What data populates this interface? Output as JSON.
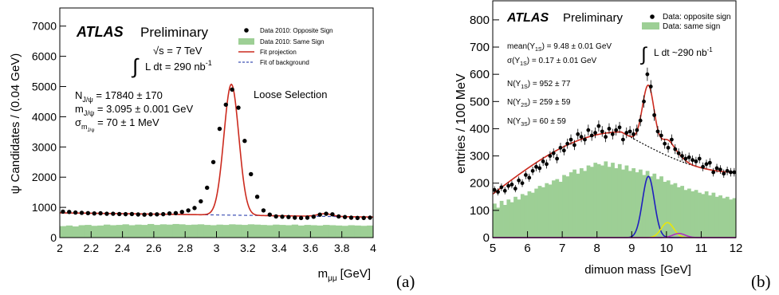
{
  "colors": {
    "data": "#000000",
    "same_sign_fill": "#9dcf95",
    "fit": "#cc2a1e",
    "background_fit_a": "#3f51b5",
    "background_fit_b": "#000000",
    "y1s": "#1f1fbf",
    "y2s": "#e8e80a",
    "y3s": "#b030c0",
    "baseline_b": "#b030c0"
  },
  "chart_data": [
    {
      "type": "line",
      "panel_label": "(a)",
      "xlabel": "m",
      "xlabel_sub": "μμ",
      "xlabel_unit": "[GeV]",
      "ylabel": "ψ Candidates / (0.04 GeV)",
      "xlim": [
        2,
        4
      ],
      "ylim": [
        0,
        7600
      ],
      "xticks": [
        2,
        2.2,
        2.4,
        2.6,
        2.8,
        3,
        3.2,
        3.4,
        3.6,
        3.8,
        4
      ],
      "xtick_labels": [
        "2",
        "2.2",
        "2.4",
        "2.6",
        "2.8",
        "3",
        "3.2",
        "3.4",
        "3.6",
        "3.8",
        "4"
      ],
      "yticks": [
        0,
        1000,
        2000,
        3000,
        4000,
        5000,
        6000,
        7000
      ],
      "ytick_labels": [
        "0",
        "1000",
        "2000",
        "3000",
        "4000",
        "5000",
        "6000",
        "7000"
      ],
      "annotations": {
        "atlas": "ATLAS",
        "preliminary": "Preliminary",
        "energy": "√s = 7 TeV",
        "lumi_integral": "∫",
        "lumi": "L dt = 290 nb",
        "lumi_sup": "-1",
        "n_label": "N",
        "n_sub": "J/ψ",
        "n_value": " = 17840 ± 170",
        "m_label": "m",
        "m_sub": "J/ψ",
        "m_value": " = 3.095 ± 0.001 GeV",
        "s_label": "σ",
        "s_sub": "m",
        "s_subsub": "J/ψ",
        "s_value": " = 70 ±  1 MeV",
        "selection": "Loose Selection"
      },
      "legend": [
        {
          "label": "Data 2010: Opposite Sign",
          "marker": "point"
        },
        {
          "label": "Data 2010: Same Sign",
          "marker": "fill"
        },
        {
          "label": "Fit projection",
          "marker": "solid-line"
        },
        {
          "label": "Fit of background",
          "marker": "dashed-line"
        }
      ],
      "legend_position": "top-right",
      "data_points": {
        "x": [
          2.02,
          2.06,
          2.1,
          2.14,
          2.18,
          2.22,
          2.26,
          2.3,
          2.34,
          2.38,
          2.42,
          2.46,
          2.5,
          2.54,
          2.58,
          2.62,
          2.66,
          2.7,
          2.74,
          2.78,
          2.82,
          2.86,
          2.9,
          2.94,
          2.98,
          3.02,
          3.06,
          3.1,
          3.14,
          3.18,
          3.22,
          3.26,
          3.3,
          3.34,
          3.38,
          3.42,
          3.46,
          3.5,
          3.54,
          3.58,
          3.62,
          3.66,
          3.7,
          3.74,
          3.78,
          3.82,
          3.86,
          3.9,
          3.94,
          3.98
        ],
        "y": [
          860,
          850,
          830,
          820,
          810,
          800,
          805,
          790,
          790,
          780,
          775,
          780,
          765,
          760,
          770,
          770,
          775,
          800,
          810,
          850,
          900,
          980,
          1200,
          1650,
          2500,
          3600,
          4400,
          4900,
          4300,
          3200,
          2100,
          1350,
          900,
          760,
          700,
          690,
          680,
          660,
          650,
          660,
          690,
          760,
          790,
          770,
          700,
          680,
          660,
          650,
          650,
          660
        ]
      },
      "same_sign": {
        "x": [
          2.0,
          2.04,
          2.08,
          2.12,
          2.16,
          2.2,
          2.24,
          2.28,
          2.32,
          2.36,
          2.4,
          2.44,
          2.48,
          2.52,
          2.56,
          2.6,
          2.64,
          2.68,
          2.72,
          2.76,
          2.8,
          2.84,
          2.88,
          2.92,
          2.96,
          3.0,
          3.04,
          3.08,
          3.12,
          3.16,
          3.2,
          3.24,
          3.28,
          3.32,
          3.36,
          3.4,
          3.44,
          3.48,
          3.52,
          3.56,
          3.6,
          3.64,
          3.68,
          3.72,
          3.76,
          3.8,
          3.84,
          3.88,
          3.92,
          3.96
        ],
        "y": [
          380,
          400,
          370,
          410,
          420,
          390,
          400,
          430,
          410,
          420,
          440,
          410,
          430,
          420,
          450,
          420,
          440,
          430,
          450,
          440,
          420,
          430,
          440,
          420,
          410,
          430,
          420,
          440,
          430,
          420,
          440,
          430,
          420,
          410,
          430,
          420,
          410,
          430,
          400,
          420,
          410,
          400,
          420,
          410,
          400,
          390,
          410,
          400,
          390,
          400
        ]
      },
      "fit": {
        "peak_mass": 3.095,
        "width": 0.07,
        "peak_height": 4330,
        "bkg_start": 820,
        "bkg_end": 680
      },
      "background_fit": {
        "x": [
          2.0,
          4.0
        ],
        "y": [
          820,
          680
        ]
      }
    },
    {
      "type": "line",
      "panel_label": "(b)",
      "xlabel": "dimuon mass",
      "xlabel_unit": "[GeV]",
      "ylabel": "entries / 100 MeV",
      "xlim": [
        5,
        12
      ],
      "ylim": [
        0,
        870
      ],
      "xticks": [
        5,
        6,
        7,
        8,
        9,
        10,
        11,
        12
      ],
      "xtick_labels": [
        "5",
        "6",
        "7",
        "8",
        "9",
        "10",
        "11",
        "12"
      ],
      "yticks": [
        0,
        100,
        200,
        300,
        400,
        500,
        600,
        700,
        800
      ],
      "ytick_labels": [
        "0",
        "100",
        "200",
        "300",
        "400",
        "500",
        "600",
        "700",
        "800"
      ],
      "annotations": {
        "atlas": "ATLAS",
        "preliminary": "Preliminary",
        "mean_label": "mean(Υ",
        "mean_sub": "1S",
        "mean_value": ") = 9.48 ± 0.01 GeV",
        "sigma_label": "σ(Υ",
        "sigma_sub": "1S",
        "sigma_value": ") = 0.17 ± 0.01 GeV",
        "lumi_integral": "∫",
        "lumi": "L dt ~290 nb",
        "lumi_sup": "-1",
        "n1_label": "N(Υ",
        "n1_sub": "1S",
        "n1_value": ") = 952 ± 77",
        "n2_label": "N(Υ",
        "n2_sub": "2S",
        "n2_value": ") = 259 ± 59",
        "n3_label": "N(Υ",
        "n3_sub": "3S",
        "n3_value": ") = 60 ± 59"
      },
      "legend": [
        {
          "label": "Data: opposite sign",
          "marker": "point"
        },
        {
          "label": "Data: same sign",
          "marker": "fill"
        }
      ],
      "legend_position": "top-right",
      "data_points": {
        "x": [
          5.05,
          5.15,
          5.25,
          5.35,
          5.45,
          5.55,
          5.65,
          5.75,
          5.85,
          5.95,
          6.05,
          6.15,
          6.25,
          6.35,
          6.45,
          6.55,
          6.65,
          6.75,
          6.85,
          6.95,
          7.05,
          7.15,
          7.25,
          7.35,
          7.45,
          7.55,
          7.65,
          7.75,
          7.85,
          7.95,
          8.05,
          8.15,
          8.25,
          8.35,
          8.45,
          8.55,
          8.65,
          8.75,
          8.85,
          8.95,
          9.05,
          9.15,
          9.25,
          9.35,
          9.45,
          9.55,
          9.65,
          9.75,
          9.85,
          9.95,
          10.05,
          10.15,
          10.25,
          10.35,
          10.45,
          10.55,
          10.65,
          10.75,
          10.85,
          10.95,
          11.05,
          11.15,
          11.25,
          11.35,
          11.45,
          11.55,
          11.65,
          11.75,
          11.85,
          11.95
        ],
        "y": [
          175,
          168,
          185,
          172,
          190,
          195,
          180,
          210,
          200,
          230,
          220,
          245,
          260,
          255,
          280,
          270,
          300,
          310,
          290,
          330,
          320,
          345,
          360,
          340,
          380,
          370,
          360,
          395,
          375,
          385,
          410,
          390,
          370,
          400,
          380,
          395,
          405,
          360,
          385,
          390,
          380,
          395,
          430,
          500,
          600,
          555,
          450,
          390,
          375,
          345,
          330,
          360,
          325,
          310,
          300,
          290,
          295,
          285,
          280,
          290,
          260,
          270,
          275,
          240,
          255,
          250,
          235,
          245,
          240,
          240
        ]
      },
      "same_sign": {
        "x": [
          5.0,
          5.1,
          5.2,
          5.3,
          5.4,
          5.5,
          5.6,
          5.7,
          5.8,
          5.9,
          6.0,
          6.1,
          6.2,
          6.3,
          6.4,
          6.5,
          6.6,
          6.7,
          6.8,
          6.9,
          7.0,
          7.1,
          7.2,
          7.3,
          7.4,
          7.5,
          7.6,
          7.7,
          7.8,
          7.9,
          8.0,
          8.1,
          8.2,
          8.3,
          8.4,
          8.5,
          8.6,
          8.7,
          8.8,
          8.9,
          9.0,
          9.1,
          9.2,
          9.3,
          9.4,
          9.5,
          9.6,
          9.7,
          9.8,
          9.9,
          10.0,
          10.1,
          10.2,
          10.3,
          10.4,
          10.5,
          10.6,
          10.7,
          10.8,
          10.9,
          11.0,
          11.1,
          11.2,
          11.3,
          11.4,
          11.5,
          11.6,
          11.7,
          11.8,
          11.9
        ],
        "y": [
          125,
          110,
          135,
          120,
          140,
          130,
          150,
          140,
          160,
          155,
          170,
          165,
          180,
          190,
          185,
          200,
          195,
          210,
          215,
          205,
          230,
          225,
          240,
          250,
          235,
          255,
          245,
          265,
          260,
          275,
          270,
          265,
          280,
          260,
          275,
          255,
          270,
          250,
          265,
          245,
          255,
          240,
          250,
          230,
          245,
          225,
          235,
          215,
          225,
          205,
          210,
          195,
          200,
          185,
          190,
          175,
          180,
          170,
          175,
          165,
          160,
          170,
          155,
          165,
          150,
          155,
          145,
          150,
          140,
          145
        ]
      },
      "background_fit": {
        "peak_x": 8.7,
        "peak_y": 388,
        "left_y": 160,
        "right_y": 240
      },
      "upsilon_1s": {
        "mean": 9.48,
        "sigma": 0.17,
        "height": 225
      },
      "upsilon_2s": {
        "mean": 10.03,
        "sigma": 0.18,
        "height": 55
      },
      "upsilon_3s": {
        "mean": 10.36,
        "sigma": 0.18,
        "height": 15
      }
    }
  ]
}
